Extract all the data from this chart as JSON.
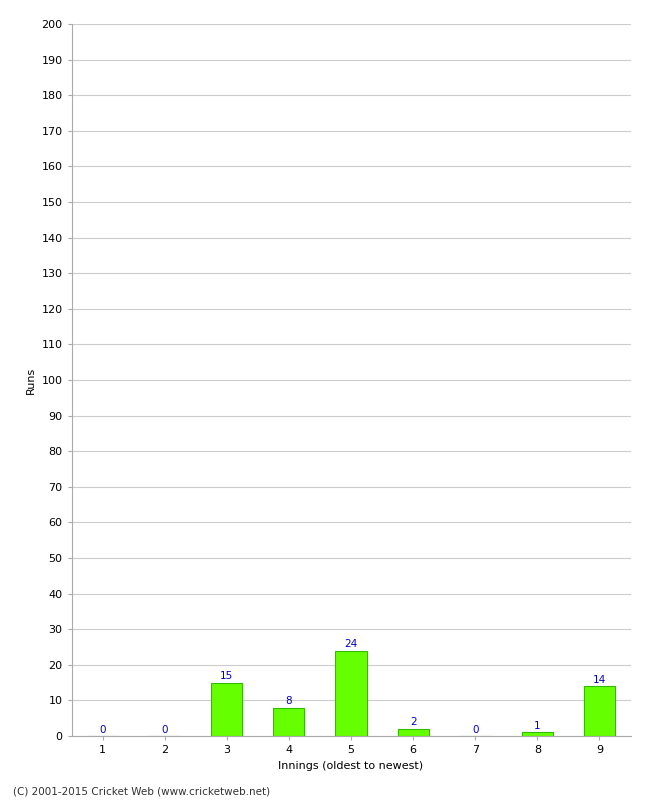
{
  "title": "",
  "xlabel": "Innings (oldest to newest)",
  "ylabel": "Runs",
  "categories": [
    "1",
    "2",
    "3",
    "4",
    "5",
    "6",
    "7",
    "8",
    "9"
  ],
  "values": [
    0,
    0,
    15,
    8,
    24,
    2,
    0,
    1,
    14
  ],
  "bar_color": "#66ff00",
  "bar_edge_color": "#33bb00",
  "label_color": "#0000cc",
  "ylim": [
    0,
    200
  ],
  "yticks": [
    0,
    10,
    20,
    30,
    40,
    50,
    60,
    70,
    80,
    90,
    100,
    110,
    120,
    130,
    140,
    150,
    160,
    170,
    180,
    190,
    200
  ],
  "grid_color": "#cccccc",
  "background_color": "#ffffff",
  "footer_text": "(C) 2001-2015 Cricket Web (www.cricketweb.net)",
  "axis_label_fontsize": 8,
  "tick_fontsize": 8,
  "value_label_fontsize": 7.5,
  "footer_fontsize": 7.5,
  "spine_color": "#aaaaaa"
}
